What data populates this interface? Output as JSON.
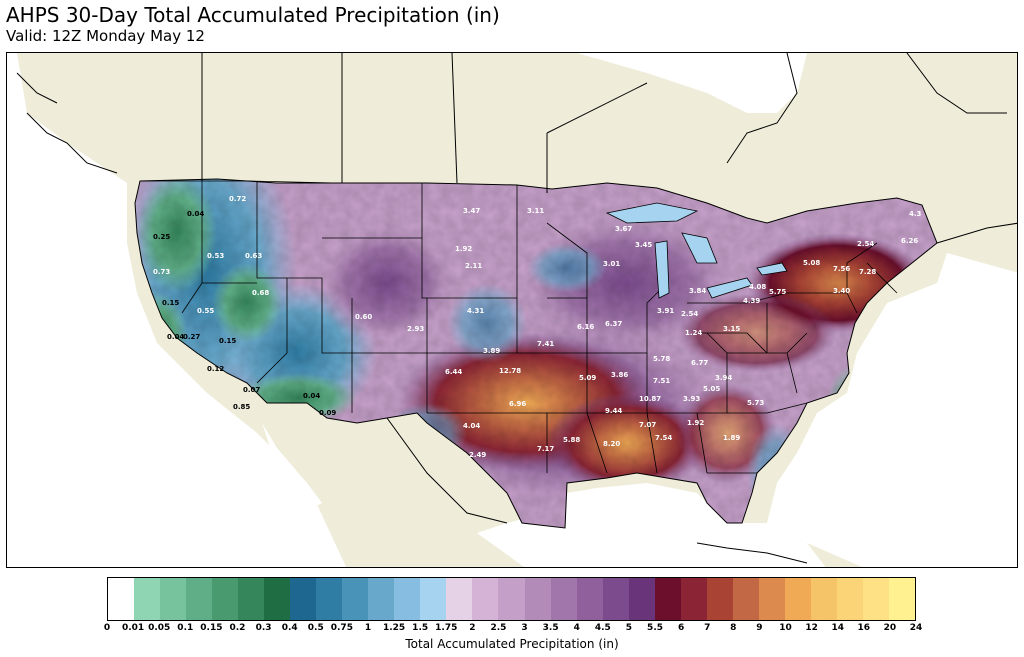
{
  "title": "AHPS 30-Day Total Accumulated Precipitation (in)",
  "subtitle": "Valid: 12Z Monday May 12",
  "colorbar": {
    "label": "Total Accumulated Precipitation (in)",
    "ticks": [
      "0",
      "0.01",
      "0.05",
      "0.1",
      "0.15",
      "0.2",
      "0.3",
      "0.4",
      "0.5",
      "0.75",
      "1",
      "1.25",
      "1.5",
      "1.75",
      "2",
      "2.5",
      "3",
      "3.5",
      "4",
      "4.5",
      "5",
      "5.5",
      "6",
      "7",
      "8",
      "9",
      "10",
      "12",
      "14",
      "16",
      "20",
      "24"
    ],
    "colors": [
      "#ffffff",
      "#8fd4b3",
      "#77c39e",
      "#5fae87",
      "#4a9a70",
      "#35875b",
      "#1f6e43",
      "#1d6790",
      "#2f7da5",
      "#4a93b8",
      "#68a8cb",
      "#86bde0",
      "#a6d3ef",
      "#e5d2e7",
      "#d4b3d6",
      "#c49fc8",
      "#b28bb9",
      "#a176ab",
      "#8f609c",
      "#7b4b8d",
      "#6a347b",
      "#6b0f2c",
      "#8b2535",
      "#a94435",
      "#c26844",
      "#dc8a4d",
      "#f0aa55",
      "#f6c468",
      "#fbd478",
      "#fde184",
      "#fff18f"
    ]
  },
  "map": {
    "values": [
      {
        "label": "0.04",
        "color": "#000000"
      },
      {
        "label": "0.72",
        "color": "#ffffff"
      },
      {
        "label": "0.25",
        "color": "#000000"
      },
      {
        "label": "0.53",
        "color": "#ffffff"
      },
      {
        "label": "0.63",
        "color": "#ffffff"
      },
      {
        "label": "0.73",
        "color": "#ffffff"
      },
      {
        "label": "0.15",
        "color": "#000000"
      },
      {
        "label": "0.55",
        "color": "#ffffff"
      },
      {
        "label": "0.68",
        "color": "#ffffff"
      },
      {
        "label": "0.04",
        "color": "#000000"
      },
      {
        "label": "0.27",
        "color": "#000000"
      },
      {
        "label": "0.15",
        "color": "#000000"
      },
      {
        "label": "0.12",
        "color": "#000000"
      },
      {
        "label": "0.60",
        "color": "#ffffff"
      },
      {
        "label": "0.07",
        "color": "#000000"
      },
      {
        "label": "0.04",
        "color": "#000000"
      },
      {
        "label": "0.09",
        "color": "#000000"
      },
      {
        "label": "0.85",
        "color": "#000000"
      },
      {
        "label": "1.92",
        "color": "#ffffff"
      },
      {
        "label": "2.11",
        "color": "#ffffff"
      },
      {
        "label": "6.16",
        "color": "#ffffff"
      },
      {
        "label": "6.37",
        "color": "#ffffff"
      },
      {
        "label": "7.41",
        "color": "#ffffff"
      },
      {
        "label": "6.44",
        "color": "#ffffff"
      },
      {
        "label": "12.78",
        "color": "#ffffff"
      },
      {
        "label": "6.96",
        "color": "#ffffff"
      },
      {
        "label": "4.04",
        "color": "#ffffff"
      },
      {
        "label": "5.09",
        "color": "#ffffff"
      },
      {
        "label": "3.86",
        "color": "#ffffff"
      },
      {
        "label": "5.78",
        "color": "#ffffff"
      },
      {
        "label": "6.77",
        "color": "#ffffff"
      },
      {
        "label": "7.51",
        "color": "#ffffff"
      },
      {
        "label": "9.44",
        "color": "#ffffff"
      },
      {
        "label": "10.87",
        "color": "#ffffff"
      },
      {
        "label": "7.07",
        "color": "#ffffff"
      },
      {
        "label": "7.54",
        "color": "#ffffff"
      },
      {
        "label": "8.20",
        "color": "#ffffff"
      },
      {
        "label": "5.88",
        "color": "#ffffff"
      },
      {
        "label": "7.17",
        "color": "#ffffff"
      },
      {
        "label": "3.94",
        "color": "#ffffff"
      },
      {
        "label": "5.05",
        "color": "#ffffff"
      },
      {
        "label": "3.93",
        "color": "#ffffff"
      },
      {
        "label": "5.73",
        "color": "#ffffff"
      },
      {
        "label": "1.92",
        "color": "#ffffff"
      },
      {
        "label": "1.89",
        "color": "#ffffff"
      },
      {
        "label": "5.08",
        "color": "#ffffff"
      },
      {
        "label": "7.56",
        "color": "#ffffff"
      },
      {
        "label": "7.28",
        "color": "#ffffff"
      },
      {
        "label": "2.54",
        "color": "#ffffff"
      },
      {
        "label": "6.26",
        "color": "#ffffff"
      },
      {
        "label": "5.75",
        "color": "#ffffff"
      },
      {
        "label": "4.39",
        "color": "#ffffff"
      },
      {
        "label": "3.84",
        "color": "#ffffff"
      },
      {
        "label": "3.40",
        "color": "#ffffff"
      },
      {
        "label": "3.01",
        "color": "#ffffff"
      },
      {
        "label": "3.67",
        "color": "#ffffff"
      },
      {
        "label": "3.45",
        "color": "#ffffff"
      },
      {
        "label": "2.54",
        "color": "#ffffff"
      },
      {
        "label": "4.08",
        "color": "#ffffff"
      },
      {
        "label": "4.3",
        "color": "#ffffff"
      },
      {
        "label": "3.15",
        "color": "#ffffff"
      },
      {
        "label": "1.24",
        "color": "#ffffff"
      },
      {
        "label": "3.91",
        "color": "#ffffff"
      },
      {
        "label": "4.31",
        "color": "#ffffff"
      },
      {
        "label": "2.49",
        "color": "#ffffff"
      },
      {
        "label": "3.11",
        "color": "#ffffff"
      },
      {
        "label": "2.93",
        "color": "#ffffff"
      },
      {
        "label": "3.89",
        "color": "#ffffff"
      },
      {
        "label": "3.47",
        "color": "#ffffff"
      }
    ]
  }
}
